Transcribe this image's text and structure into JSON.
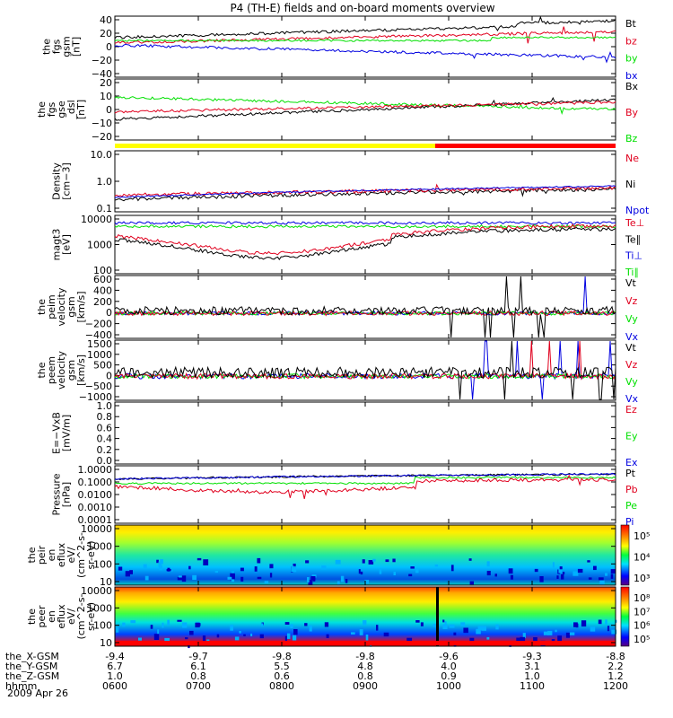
{
  "title": "P4 (TH-E) fields and on-board moments overview",
  "date_label": "2009 Apr 26",
  "colors": {
    "black": "#000000",
    "red": "#e0001e",
    "green": "#00e000",
    "blue": "#0000e0",
    "yellow": "#ffff00",
    "barred": "#ff0000"
  },
  "orbit": {
    "rows": [
      {
        "label": "the_X-GSM",
        "values": [
          "-9.4",
          "-9.7",
          "-9.8",
          "-9.8",
          "-9.6",
          "-9.3",
          "-8.8"
        ]
      },
      {
        "label": "the_Y-GSM",
        "values": [
          "6.7",
          "6.1",
          "5.5",
          "4.8",
          "4.0",
          "3.1",
          "2.2"
        ]
      },
      {
        "label": "the_Z-GSM",
        "values": [
          "1.0",
          "0.8",
          "0.6",
          "0.8",
          "0.9",
          "1.0",
          "1.2"
        ]
      },
      {
        "label": "hhmm",
        "values": [
          "0600",
          "0700",
          "0800",
          "0900",
          "1000",
          "1100",
          "1200"
        ]
      }
    ]
  },
  "chart_data": [
    {
      "type": "line",
      "ylabel": [
        "the",
        "fgs",
        "gsm",
        "[nT]"
      ],
      "yticks": [
        "40",
        "20",
        "0",
        "−20",
        "−40"
      ],
      "ylim": [
        -40,
        40
      ],
      "series": [
        {
          "name": "Bt"
        },
        {
          "name": "bz"
        },
        {
          "name": "by"
        },
        {
          "name": "bx"
        }
      ]
    },
    {
      "type": "line",
      "ylabel": [
        "the",
        "fgs",
        "gse",
        "_dsl",
        "[nT]"
      ],
      "yticks": [
        "20",
        "10",
        "0",
        "−10",
        "−20"
      ],
      "ylim": [
        -25,
        25
      ],
      "series": [
        {
          "name": "Bx"
        },
        {
          "name": "By"
        },
        {
          "name": "Bz"
        }
      ]
    },
    {
      "type": "line",
      "ylabel": [
        "Density",
        "[cm−3]"
      ],
      "yticks": [
        "10.0",
        "1.0",
        "0.1"
      ],
      "ylim": [
        0.1,
        10
      ],
      "log": true,
      "series": [
        {
          "name": "Ne"
        },
        {
          "name": "Ni"
        },
        {
          "name": "Npot"
        }
      ]
    },
    {
      "type": "line",
      "ylabel": [
        "magt3",
        "[eV]"
      ],
      "yticks": [
        "10000",
        "1000",
        "100"
      ],
      "ylim": [
        100,
        10000
      ],
      "log": true,
      "series": [
        {
          "name": "Te⊥"
        },
        {
          "name": "Te∥"
        },
        {
          "name": "Ti⊥"
        },
        {
          "name": "Ti∥"
        }
      ]
    },
    {
      "type": "line",
      "ylabel": [
        "the",
        "peim",
        "velocity",
        "gsm",
        "[km/s]"
      ],
      "yticks": [
        "600",
        "400",
        "200",
        "0",
        "−200",
        "−400"
      ],
      "ylim": [
        -400,
        600
      ],
      "series": [
        {
          "name": "Vt"
        },
        {
          "name": "Vz"
        },
        {
          "name": "Vy"
        },
        {
          "name": "Vx"
        }
      ]
    },
    {
      "type": "line",
      "ylabel": [
        "the",
        "peem",
        "velocity",
        "gsm",
        "[km/s]"
      ],
      "yticks": [
        "1500",
        "1000",
        "500",
        "0",
        "−500",
        "−1000"
      ],
      "ylim": [
        -1000,
        1500
      ],
      "series": [
        {
          "name": "Vt"
        },
        {
          "name": "Vz"
        },
        {
          "name": "Vy"
        },
        {
          "name": "Vx"
        }
      ]
    },
    {
      "type": "line",
      "ylabel": [
        "E=−VxB",
        "[mV/m]"
      ],
      "yticks": [
        "1.0",
        "0.8",
        "0.6",
        "0.4",
        "0.2",
        "0.0"
      ],
      "ylim": [
        0,
        1
      ],
      "series": [
        {
          "name": "Ez"
        },
        {
          "name": "Ey"
        },
        {
          "name": "Ex"
        }
      ]
    },
    {
      "type": "line",
      "ylabel": [
        "Pressure",
        "[nPa]"
      ],
      "yticks": [
        "1.0000",
        "0.1000",
        "0.0100",
        "0.0010",
        "0.0001"
      ],
      "ylim": [
        0.0001,
        1
      ],
      "log": true,
      "series": [
        {
          "name": "Pt"
        },
        {
          "name": "Pb"
        },
        {
          "name": "Pe"
        },
        {
          "name": "Pi"
        }
      ]
    },
    {
      "type": "heatmap",
      "ylabel": [
        "the",
        "peir",
        "en",
        "eflux",
        "eV/",
        "(cm^2-s-",
        "sr-eV)"
      ],
      "yticks": [
        "10000",
        "1000",
        "100",
        "10"
      ],
      "ylim": [
        10,
        20000
      ],
      "log": true,
      "colorbar": [
        "10⁵",
        "10⁴",
        "10³"
      ]
    },
    {
      "type": "heatmap",
      "ylabel": [
        "the",
        "peer",
        "en",
        "eflux",
        "eV/",
        "(cm^2-s-",
        "sr-eV)"
      ],
      "yticks": [
        "10000",
        "1000",
        "100",
        "10"
      ],
      "ylim": [
        10,
        20000
      ],
      "log": true,
      "colorbar": [
        "10⁸",
        "10⁷",
        "10⁶",
        "10⁵"
      ]
    }
  ]
}
